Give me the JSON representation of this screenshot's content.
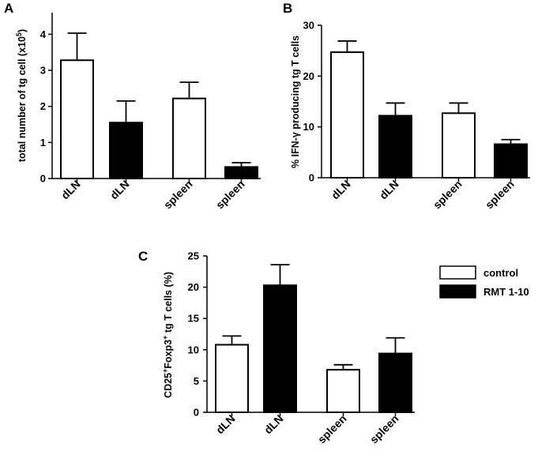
{
  "legend": {
    "items": [
      {
        "label": "control",
        "color": "#ffffff"
      },
      {
        "label": "RMT 1-10",
        "color": "#000000"
      }
    ]
  },
  "chart_data": [
    {
      "id": "A",
      "panel_label": "A",
      "type": "bar",
      "title": "",
      "categories": [
        "dLN",
        "dLN",
        "spleen",
        "spleen"
      ],
      "values": [
        3.28,
        1.55,
        2.22,
        0.32
      ],
      "errors": [
        0.75,
        0.6,
        0.45,
        0.12
      ],
      "fills": [
        "#ffffff",
        "#000000",
        "#ffffff",
        "#000000"
      ],
      "ylabel": {
        "main": "total number of tg cell (x10",
        "sup": "5",
        "tail": ")"
      },
      "ylim": [
        0,
        4.6
      ],
      "yticks": [
        0,
        1,
        2,
        3,
        4
      ],
      "grid": false
    },
    {
      "id": "B",
      "panel_label": "B",
      "type": "bar",
      "title": "",
      "categories": [
        "dLN",
        "dLN",
        "spleen",
        "spleen"
      ],
      "values": [
        24.7,
        12.2,
        12.7,
        6.6
      ],
      "errors": [
        2.2,
        2.5,
        2.0,
        0.9
      ],
      "fills": [
        "#ffffff",
        "#000000",
        "#ffffff",
        "#000000"
      ],
      "ylabel": {
        "main": "% IFN-γ producing tg T cells"
      },
      "ylim": [
        0,
        30
      ],
      "yticks": [
        0,
        10,
        20,
        30
      ],
      "grid": false
    },
    {
      "id": "C",
      "panel_label": "C",
      "type": "bar",
      "title": "",
      "categories": [
        "dLN",
        "dLN",
        "spleen",
        "spleen"
      ],
      "values": [
        10.8,
        20.3,
        6.8,
        9.4
      ],
      "errors": [
        1.4,
        3.3,
        0.8,
        2.5
      ],
      "fills": [
        "#ffffff",
        "#000000",
        "#ffffff",
        "#000000"
      ],
      "ylabel": {
        "parts": [
          "CD25",
          "+",
          "Foxp3",
          "+",
          " tg T cells (%)"
        ]
      },
      "ylim": [
        0,
        25
      ],
      "yticks": [
        0,
        5,
        10,
        15,
        20,
        25
      ],
      "grid": false
    }
  ]
}
